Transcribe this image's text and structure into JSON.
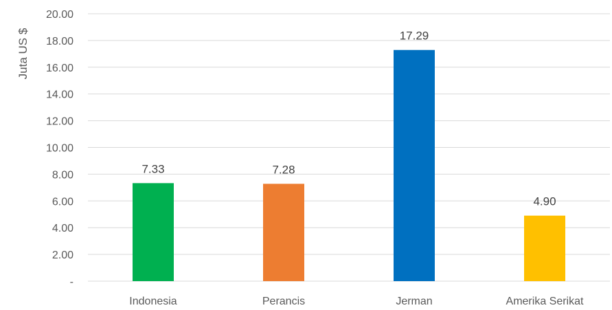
{
  "chart_data": {
    "type": "bar",
    "title": "",
    "xlabel": "",
    "ylabel": "Juta US $",
    "categories": [
      "Indonesia",
      "Perancis",
      "Jerman",
      "Amerika Serikat"
    ],
    "values": [
      7.33,
      7.28,
      17.29,
      4.9
    ],
    "value_labels": [
      "7.33",
      "7.28",
      "17.29",
      "4.90"
    ],
    "colors": [
      "#00B050",
      "#ED7D31",
      "#0070C0",
      "#FFC000"
    ],
    "ylim": [
      0,
      20
    ],
    "yticks": [
      0,
      2,
      4,
      6,
      8,
      10,
      12,
      14,
      16,
      18,
      20
    ],
    "ytick_labels": [
      "-",
      "2.00",
      "4.00",
      "6.00",
      "8.00",
      "10.00",
      "12.00",
      "14.00",
      "16.00",
      "18.00",
      "20.00"
    ],
    "grid": true,
    "gridline_color": "#D9D9D9",
    "legend": "none"
  }
}
